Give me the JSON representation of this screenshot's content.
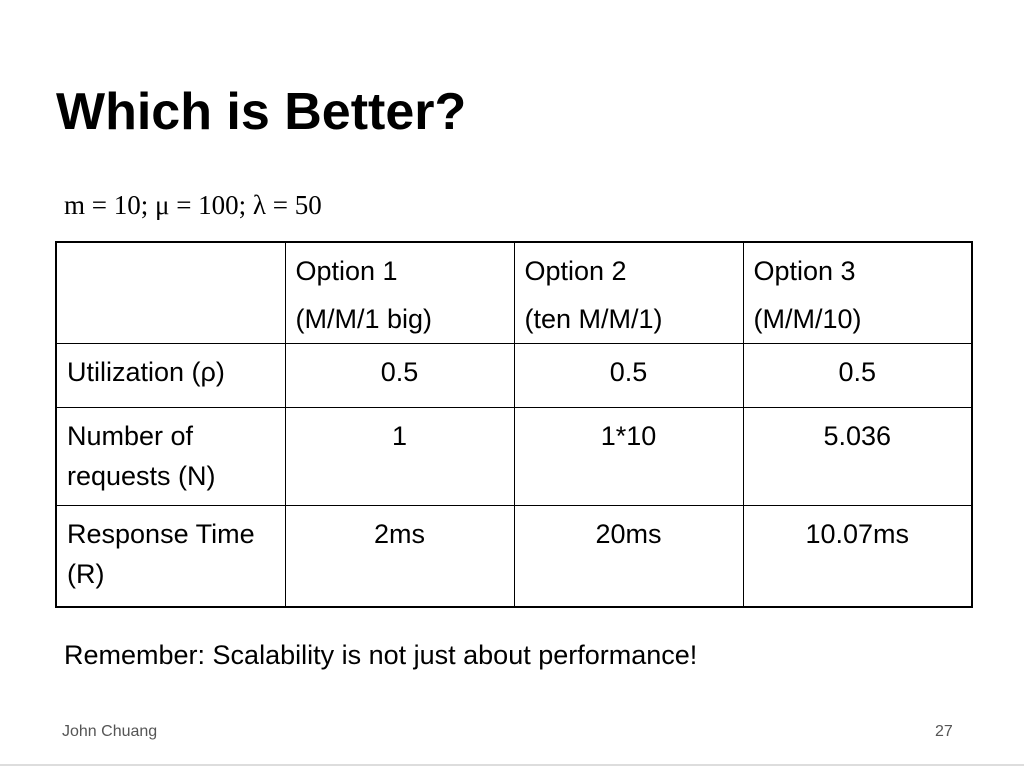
{
  "title": "Which is Better?",
  "subtitle": "m = 10; μ = 100; λ = 50",
  "table": {
    "header": [
      [
        "Option 1",
        "(M/M/1 big)"
      ],
      [
        "Option 2",
        "(ten M/M/1)"
      ],
      [
        "Option 3",
        "(M/M/10)"
      ]
    ],
    "rows": [
      [
        "Utilization (ρ)",
        "0.5",
        "0.5",
        "0.5"
      ],
      [
        "Number of requests (N)",
        "1",
        "1*10",
        "5.036"
      ],
      [
        "Response Time (R)",
        "2ms",
        "20ms",
        "10.07ms"
      ]
    ]
  },
  "note": "Remember: Scalability is not just about performance!",
  "footer": {
    "author": "John Chuang",
    "page": "27"
  }
}
